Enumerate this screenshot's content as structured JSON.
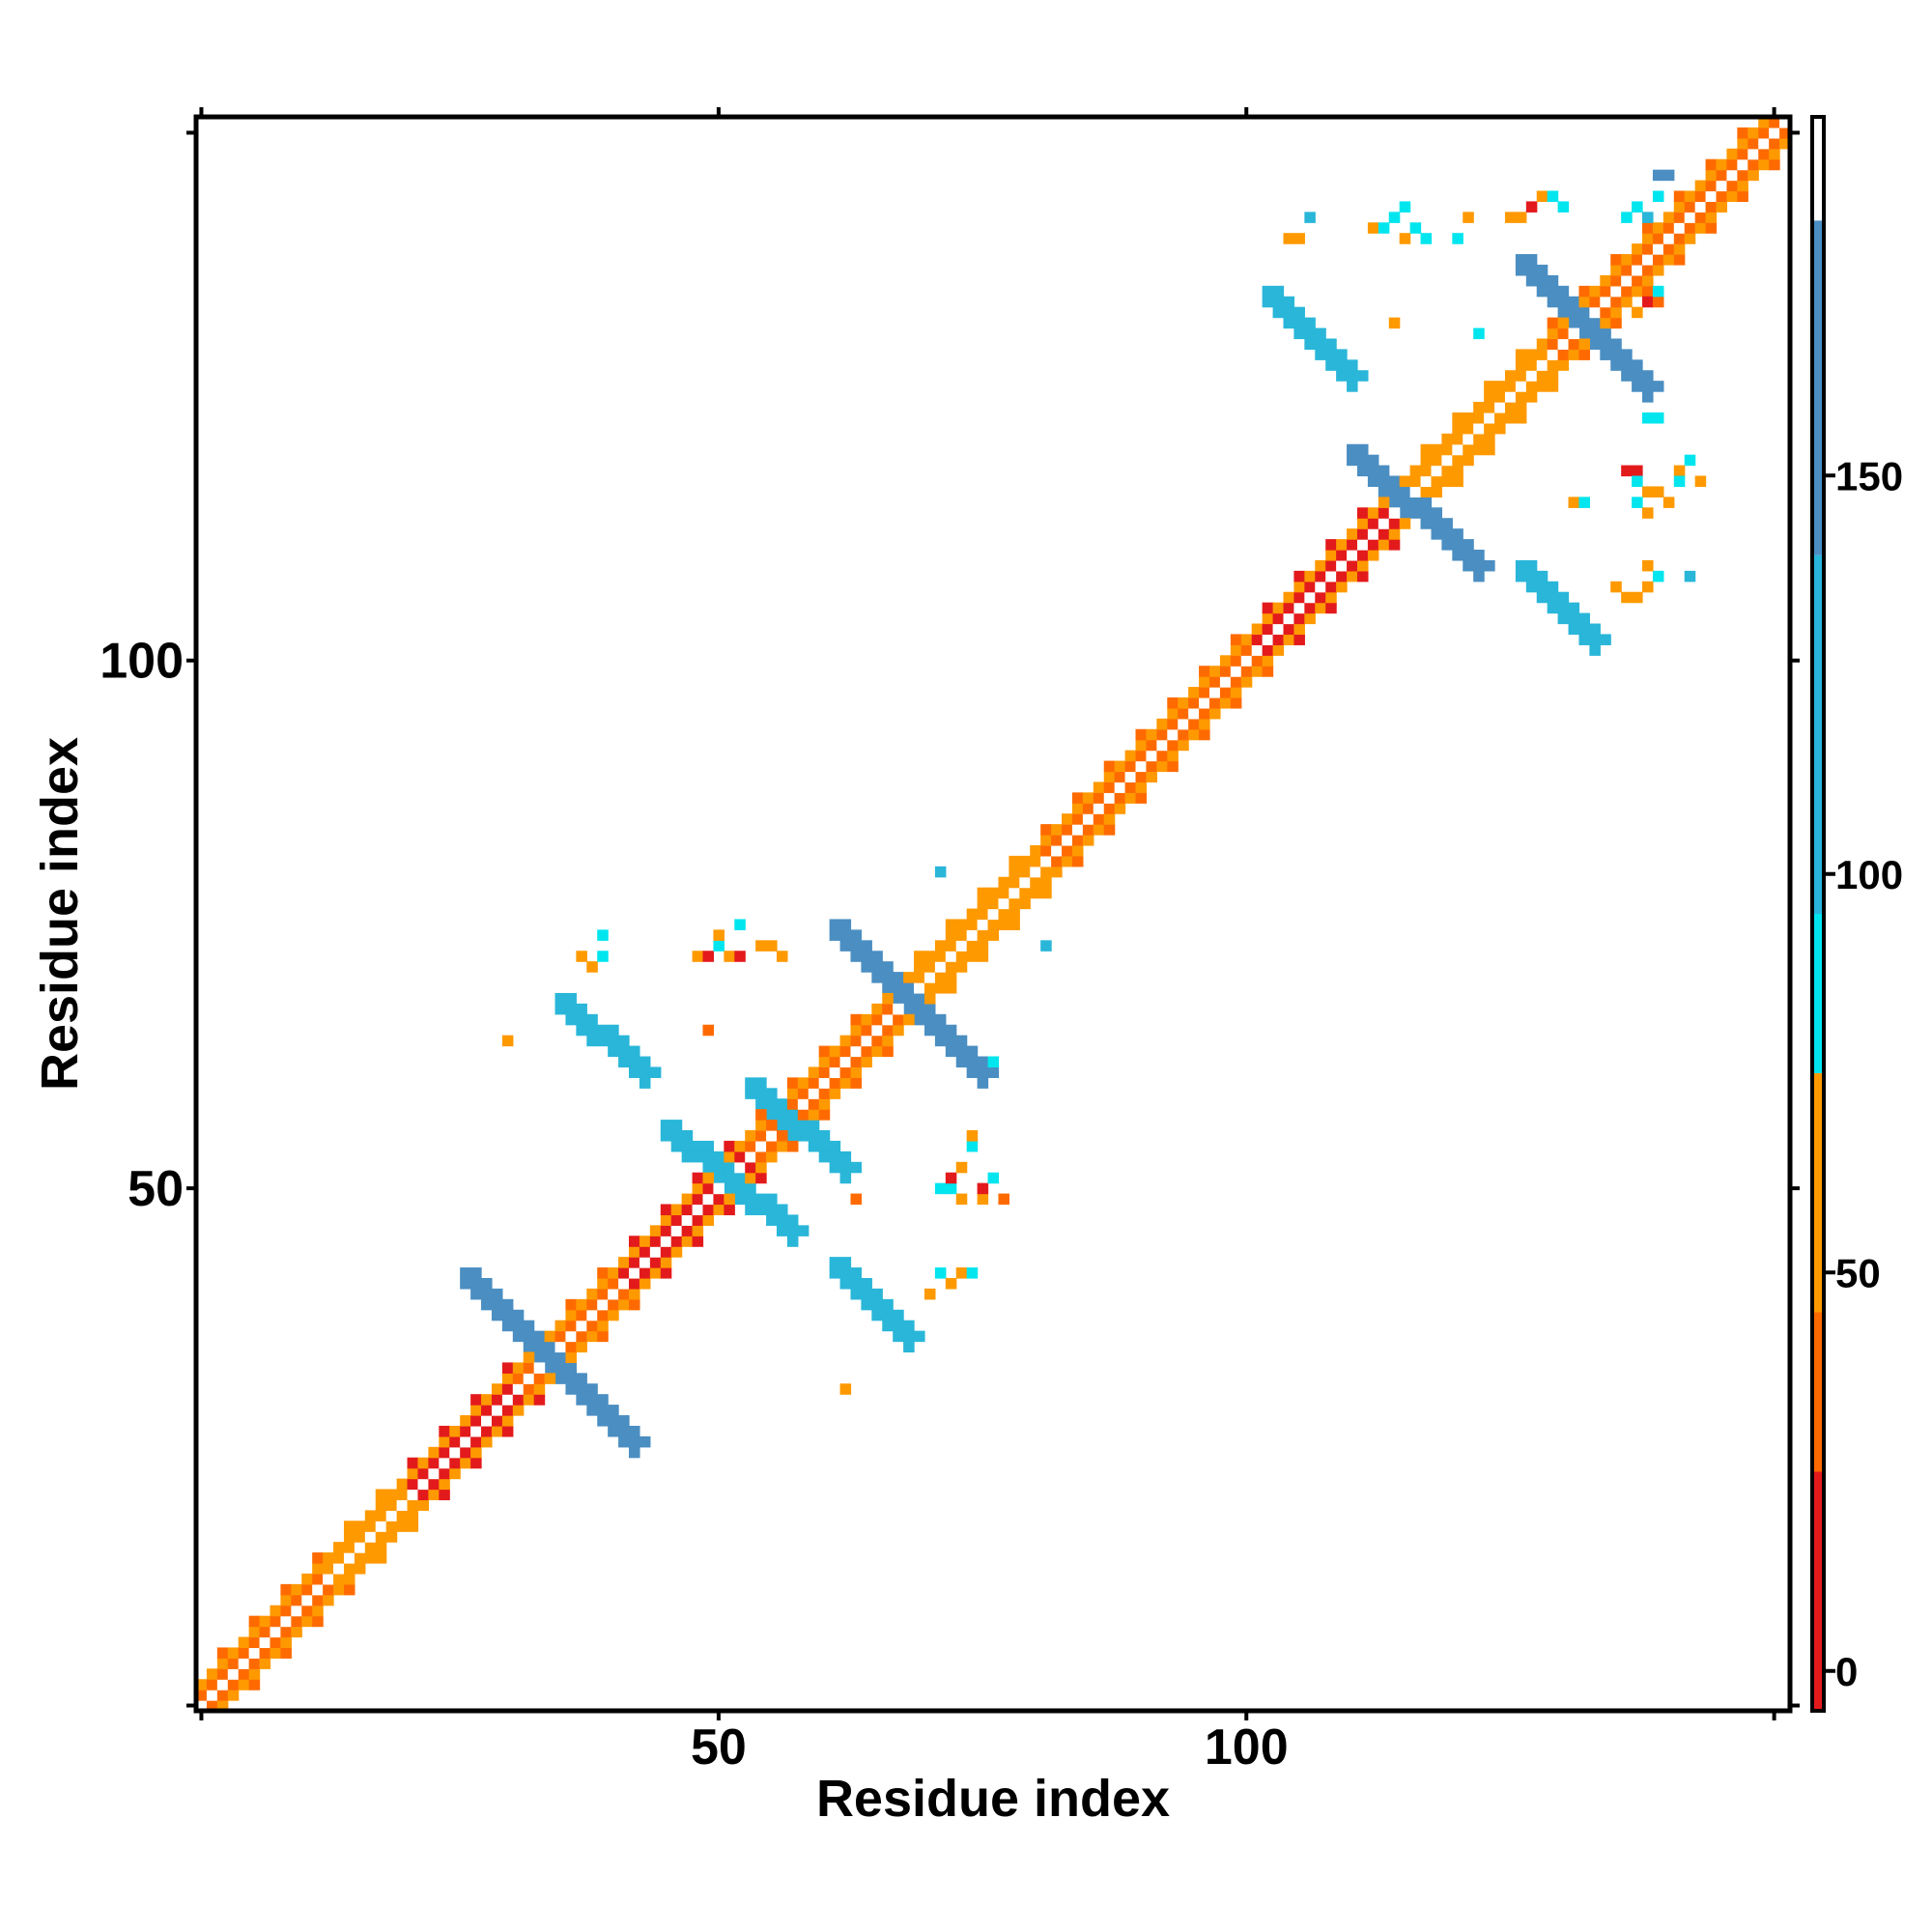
{
  "chart_data": {
    "type": "heatmap",
    "title": "",
    "xlabel": "Residue index",
    "ylabel": "Residue index",
    "xlim": [
      1,
      151
    ],
    "ylim": [
      1,
      151
    ],
    "x_ticks": [
      50,
      100
    ],
    "y_ticks": [
      50,
      100
    ],
    "grid": false,
    "colorbar": {
      "ticks": [
        0,
        50,
        100,
        150
      ],
      "range": [
        -5,
        195
      ],
      "bins": [
        {
          "from": -5,
          "to": 25,
          "color": "#e31a1c"
        },
        {
          "from": 25,
          "to": 45,
          "color": "#ff6a00"
        },
        {
          "from": 45,
          "to": 75,
          "color": "#ff9900"
        },
        {
          "from": 75,
          "to": 95,
          "color": "#00e5ee"
        },
        {
          "from": 95,
          "to": 140,
          "color": "#29b6d9"
        },
        {
          "from": 140,
          "to": 182,
          "color": "#4a8ec2"
        },
        {
          "from": 182,
          "to": 195,
          "color": "#ffffff"
        }
      ]
    },
    "diagonal": {
      "from": 1,
      "to": 151,
      "band_color": "#ff6a00",
      "secondary_color": "#ff9900",
      "center_color": "#ffffff"
    },
    "diagonal_segments": [
      {
        "from": 1,
        "to": 12,
        "color": "#ff6a00"
      },
      {
        "from": 13,
        "to": 20,
        "color": "#ff9900"
      },
      {
        "from": 21,
        "to": 30,
        "color": "#e31a1c"
      },
      {
        "from": 31,
        "to": 40,
        "color": "#ff6a00"
      },
      {
        "from": 41,
        "to": 52,
        "color": "#e31a1c"
      },
      {
        "from": 53,
        "to": 66,
        "color": "#ff6a00"
      },
      {
        "from": 67,
        "to": 80,
        "color": "#ff9900"
      },
      {
        "from": 81,
        "to": 100,
        "color": "#ff6a00"
      },
      {
        "from": 101,
        "to": 115,
        "color": "#e31a1c"
      },
      {
        "from": 116,
        "to": 128,
        "color": "#ff9900"
      },
      {
        "from": 129,
        "to": 151,
        "color": "#ff6a00"
      }
    ],
    "antidiagonal_strands": [
      {
        "x1": 26,
        "y1": 42,
        "x2": 42,
        "y2": 26,
        "width": 2,
        "color": "#4a8ec2"
      },
      {
        "x1": 45,
        "y1": 56,
        "x2": 57,
        "y2": 46,
        "width": 2,
        "color": "#29b6d9"
      },
      {
        "x1": 53,
        "y1": 60,
        "x2": 62,
        "y2": 52,
        "width": 2,
        "color": "#29b6d9"
      },
      {
        "x1": 61,
        "y1": 75,
        "x2": 75,
        "y2": 61,
        "width": 2,
        "color": "#4a8ec2"
      },
      {
        "x1": 110,
        "y1": 120,
        "x2": 122,
        "y2": 109,
        "width": 2,
        "color": "#4a8ec2"
      },
      {
        "x1": 126,
        "y1": 138,
        "x2": 138,
        "y2": 126,
        "width": 2,
        "color": "#4a8ec2"
      }
    ],
    "parallel_strands": [
      {
        "x1": 35,
        "y1": 68,
        "x2": 43,
        "y2": 61,
        "width": 2,
        "color": "#29b6d9"
      },
      {
        "x1": 61,
        "y1": 43,
        "x2": 68,
        "y2": 36,
        "width": 2,
        "color": "#29b6d9"
      },
      {
        "x1": 102,
        "y1": 135,
        "x2": 110,
        "y2": 127,
        "width": 2,
        "color": "#29b6d9"
      },
      {
        "x1": 126,
        "y1": 109,
        "x2": 133,
        "y2": 102,
        "width": 2,
        "color": "#29b6d9"
      }
    ],
    "scattered_cells": [
      {
        "x": 37,
        "y": 72,
        "color": "#ff9900"
      },
      {
        "x": 38,
        "y": 71,
        "color": "#ff9900"
      },
      {
        "x": 39,
        "y": 72,
        "color": "#00e5ee"
      },
      {
        "x": 39,
        "y": 74,
        "color": "#00e5ee"
      },
      {
        "x": 48,
        "y": 72,
        "color": "#ff9900"
      },
      {
        "x": 49,
        "y": 72,
        "color": "#e31a1c"
      },
      {
        "x": 50,
        "y": 73,
        "color": "#00e5ee"
      },
      {
        "x": 50,
        "y": 74,
        "color": "#ff9900"
      },
      {
        "x": 51,
        "y": 72,
        "color": "#ff9900"
      },
      {
        "x": 52,
        "y": 75,
        "color": "#00e5ee"
      },
      {
        "x": 52,
        "y": 72,
        "color": "#e31a1c"
      },
      {
        "x": 54,
        "y": 73,
        "color": "#ff9900"
      },
      {
        "x": 55,
        "y": 73,
        "color": "#ff9900"
      },
      {
        "x": 56,
        "y": 72,
        "color": "#ff9900"
      },
      {
        "x": 62,
        "y": 75,
        "color": "#ff9900"
      },
      {
        "x": 63,
        "y": 74,
        "color": "#e31a1c"
      },
      {
        "x": 30,
        "y": 64,
        "color": "#ff9900"
      },
      {
        "x": 49,
        "y": 65,
        "color": "#ff6a00"
      },
      {
        "x": 63,
        "y": 49,
        "color": "#ff6a00"
      },
      {
        "x": 62,
        "y": 31,
        "color": "#ff9900"
      },
      {
        "x": 71,
        "y": 50,
        "color": "#00e5ee"
      },
      {
        "x": 72,
        "y": 50,
        "color": "#00e5ee"
      },
      {
        "x": 72,
        "y": 51,
        "color": "#e31a1c"
      },
      {
        "x": 73,
        "y": 49,
        "color": "#ff9900"
      },
      {
        "x": 73,
        "y": 52,
        "color": "#ff9900"
      },
      {
        "x": 74,
        "y": 54,
        "color": "#00e5ee"
      },
      {
        "x": 74,
        "y": 55,
        "color": "#ff9900"
      },
      {
        "x": 75,
        "y": 49,
        "color": "#ff9900"
      },
      {
        "x": 75,
        "y": 50,
        "color": "#e31a1c"
      },
      {
        "x": 76,
        "y": 51,
        "color": "#00e5ee"
      },
      {
        "x": 77,
        "y": 49,
        "color": "#ff6a00"
      },
      {
        "x": 71,
        "y": 42,
        "color": "#00e5ee"
      },
      {
        "x": 72,
        "y": 41,
        "color": "#ff9900"
      },
      {
        "x": 73,
        "y": 42,
        "color": "#ff9900"
      },
      {
        "x": 74,
        "y": 42,
        "color": "#00e5ee"
      },
      {
        "x": 70,
        "y": 40,
        "color": "#ff9900"
      },
      {
        "x": 75,
        "y": 62,
        "color": "#ff9900"
      },
      {
        "x": 76,
        "y": 62,
        "color": "#00e5ee"
      },
      {
        "x": 71,
        "y": 80,
        "color": "#29b6d9"
      },
      {
        "x": 81,
        "y": 73,
        "color": "#29b6d9"
      },
      {
        "x": 104,
        "y": 140,
        "color": "#ff9900"
      },
      {
        "x": 105,
        "y": 140,
        "color": "#ff9900"
      },
      {
        "x": 106,
        "y": 142,
        "color": "#29b6d9"
      },
      {
        "x": 112,
        "y": 141,
        "color": "#ff9900"
      },
      {
        "x": 113,
        "y": 141,
        "color": "#00e5ee"
      },
      {
        "x": 114,
        "y": 142,
        "color": "#00e5ee"
      },
      {
        "x": 115,
        "y": 143,
        "color": "#00e5ee"
      },
      {
        "x": 115,
        "y": 140,
        "color": "#ff9900"
      },
      {
        "x": 116,
        "y": 141,
        "color": "#00e5ee"
      },
      {
        "x": 117,
        "y": 140,
        "color": "#00e5ee"
      },
      {
        "x": 120,
        "y": 140,
        "color": "#00e5ee"
      },
      {
        "x": 121,
        "y": 142,
        "color": "#ff9900"
      },
      {
        "x": 125,
        "y": 142,
        "color": "#ff9900"
      },
      {
        "x": 126,
        "y": 142,
        "color": "#ff9900"
      },
      {
        "x": 127,
        "y": 143,
        "color": "#e31a1c"
      },
      {
        "x": 128,
        "y": 144,
        "color": "#ff9900"
      },
      {
        "x": 129,
        "y": 144,
        "color": "#00e5ee"
      },
      {
        "x": 130,
        "y": 143,
        "color": "#00e5ee"
      },
      {
        "x": 136,
        "y": 142,
        "color": "#00e5ee"
      },
      {
        "x": 137,
        "y": 143,
        "color": "#00e5ee"
      },
      {
        "x": 138,
        "y": 142,
        "color": "#29b6d9"
      },
      {
        "x": 139,
        "y": 144,
        "color": "#00e5ee"
      },
      {
        "x": 139,
        "y": 146,
        "color": "#4a8ec2"
      },
      {
        "x": 140,
        "y": 146,
        "color": "#4a8ec2"
      },
      {
        "x": 141,
        "y": 141,
        "color": "#29b6d9"
      },
      {
        "x": 141,
        "y": 140,
        "color": "#29b6d9"
      },
      {
        "x": 138,
        "y": 134,
        "color": "#e31a1c"
      },
      {
        "x": 139,
        "y": 134,
        "color": "#ff6a00"
      },
      {
        "x": 139,
        "y": 135,
        "color": "#00e5ee"
      },
      {
        "x": 137,
        "y": 133,
        "color": "#ff9900"
      },
      {
        "x": 138,
        "y": 123,
        "color": "#00e5ee"
      },
      {
        "x": 139,
        "y": 123,
        "color": "#00e5ee"
      },
      {
        "x": 136,
        "y": 118,
        "color": "#e31a1c"
      },
      {
        "x": 137,
        "y": 118,
        "color": "#e31a1c"
      },
      {
        "x": 137,
        "y": 117,
        "color": "#00e5ee"
      },
      {
        "x": 138,
        "y": 116,
        "color": "#ff9900"
      },
      {
        "x": 139,
        "y": 116,
        "color": "#ff9900"
      },
      {
        "x": 141,
        "y": 118,
        "color": "#ff9900"
      },
      {
        "x": 141,
        "y": 117,
        "color": "#00e5ee"
      },
      {
        "x": 140,
        "y": 115,
        "color": "#ff9900"
      },
      {
        "x": 143,
        "y": 117,
        "color": "#ff9900"
      },
      {
        "x": 142,
        "y": 119,
        "color": "#00e5ee"
      },
      {
        "x": 137,
        "y": 115,
        "color": "#00e5ee"
      },
      {
        "x": 138,
        "y": 114,
        "color": "#ff9900"
      },
      {
        "x": 135,
        "y": 107,
        "color": "#ff9900"
      },
      {
        "x": 136,
        "y": 106,
        "color": "#ff9900"
      },
      {
        "x": 137,
        "y": 106,
        "color": "#ff9900"
      },
      {
        "x": 138,
        "y": 107,
        "color": "#ff9900"
      },
      {
        "x": 139,
        "y": 108,
        "color": "#00e5ee"
      },
      {
        "x": 138,
        "y": 109,
        "color": "#ff9900"
      },
      {
        "x": 142,
        "y": 108,
        "color": "#29b6d9"
      },
      {
        "x": 131,
        "y": 115,
        "color": "#ff9900"
      },
      {
        "x": 132,
        "y": 115,
        "color": "#00e5ee"
      },
      {
        "x": 114,
        "y": 132,
        "color": "#ff9900"
      },
      {
        "x": 122,
        "y": 131,
        "color": "#00e5ee"
      }
    ]
  }
}
